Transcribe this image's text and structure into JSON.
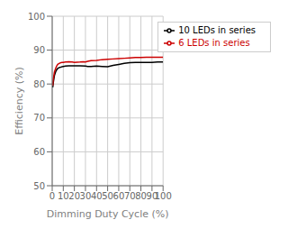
{
  "chart_data": {
    "type": "line",
    "xlabel": "Dimming Duty Cycle (%)",
    "ylabel": "Efficiency (%)",
    "xlim": [
      0,
      100
    ],
    "ylim": [
      50,
      100
    ],
    "xticks": [
      0,
      10,
      20,
      30,
      40,
      50,
      60,
      70,
      80,
      90,
      100
    ],
    "yticks": [
      50,
      60,
      70,
      80,
      90,
      100
    ],
    "grid": true,
    "legend": "upper right",
    "series": [
      {
        "name": "10 LEDs in series",
        "color": "#000000",
        "x": [
          0.5,
          1,
          2,
          3,
          4,
          5,
          6,
          7,
          8,
          9,
          10,
          12,
          15,
          18,
          20,
          25,
          30,
          32,
          35,
          40,
          45,
          50,
          55,
          60,
          65,
          70,
          75,
          80,
          85,
          90,
          95,
          100
        ],
        "values": [
          79.0,
          80.5,
          82.5,
          83.5,
          84.2,
          84.6,
          84.8,
          84.9,
          85.0,
          85.1,
          85.2,
          85.3,
          85.4,
          85.4,
          85.4,
          85.4,
          85.3,
          85.2,
          85.2,
          85.3,
          85.2,
          85.1,
          85.5,
          85.8,
          86.1,
          86.3,
          86.4,
          86.4,
          86.4,
          86.4,
          86.5,
          86.5
        ]
      },
      {
        "name": "6 LEDs in series",
        "color": "#cc0000",
        "x": [
          0.5,
          1,
          2,
          3,
          4,
          5,
          6,
          7,
          8,
          9,
          10,
          12,
          15,
          18,
          20,
          25,
          28,
          30,
          32,
          35,
          40,
          45,
          50,
          55,
          60,
          65,
          70,
          75,
          80,
          85,
          90,
          95,
          100
        ],
        "values": [
          79.5,
          81.5,
          83.5,
          84.5,
          85.3,
          85.8,
          86.0,
          86.2,
          86.3,
          86.4,
          86.4,
          86.5,
          86.6,
          86.5,
          86.4,
          86.5,
          86.6,
          86.5,
          86.7,
          86.9,
          87.0,
          87.2,
          87.3,
          87.4,
          87.5,
          87.6,
          87.7,
          87.8,
          87.8,
          87.9,
          87.9,
          87.9,
          87.9
        ]
      }
    ]
  }
}
